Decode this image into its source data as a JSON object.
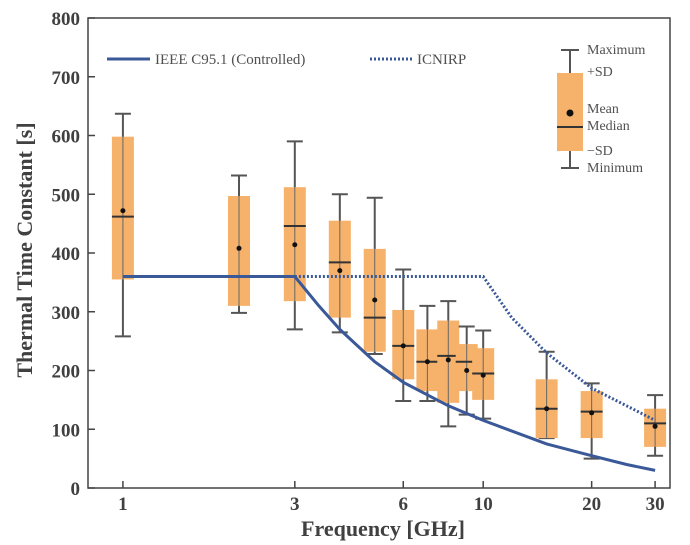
{
  "chart_data": {
    "type": "box",
    "xlabel": "Frequency [GHz]",
    "ylabel": "Thermal Time Constant [s]",
    "x_scale": "log",
    "xlim": [
      0.8,
      33
    ],
    "ylim": [
      0,
      800
    ],
    "x_ticks": [
      1,
      3,
      6,
      10,
      20,
      30
    ],
    "y_ticks": [
      0,
      100,
      200,
      300,
      400,
      500,
      600,
      700,
      800
    ],
    "grid": false,
    "legend_placement": "top-left",
    "colors": {
      "box_fill": "#f6b26b",
      "line": "#3b5998",
      "whisker": "#555555"
    },
    "series": [
      {
        "name": "IEEE C95.1 (Controlled)",
        "style": "solid",
        "x": [
          1,
          3,
          3.5,
          4,
          5,
          6,
          8,
          10,
          15,
          20,
          25,
          30
        ],
        "y": [
          360,
          360,
          310,
          270,
          215,
          180,
          140,
          115,
          75,
          55,
          40,
          30
        ]
      },
      {
        "name": "ICNIRP",
        "style": "dotted",
        "x": [
          1,
          10,
          12,
          15,
          20,
          25,
          30
        ],
        "y": [
          360,
          360,
          290,
          230,
          170,
          140,
          115
        ]
      }
    ],
    "boxes": [
      {
        "x": 1,
        "min": 258,
        "sd_low": 355,
        "median": 462,
        "mean": 472,
        "sd_high": 598,
        "max": 637
      },
      {
        "x": 2.1,
        "min": 298,
        "sd_low": 310,
        "median": 360,
        "mean": 408,
        "sd_high": 497,
        "max": 532
      },
      {
        "x": 3,
        "min": 270,
        "sd_low": 318,
        "median": 446,
        "mean": 414,
        "sd_high": 512,
        "max": 590
      },
      {
        "x": 4,
        "min": 265,
        "sd_low": 290,
        "median": 384,
        "mean": 370,
        "sd_high": 455,
        "max": 500
      },
      {
        "x": 5,
        "min": 228,
        "sd_low": 232,
        "median": 290,
        "mean": 320,
        "sd_high": 407,
        "max": 494
      },
      {
        "x": 6,
        "min": 148,
        "sd_low": 185,
        "median": 242,
        "mean": 242,
        "sd_high": 303,
        "max": 372
      },
      {
        "x": 7,
        "min": 148,
        "sd_low": 165,
        "median": 215,
        "mean": 215,
        "sd_high": 270,
        "max": 310
      },
      {
        "x": 8,
        "min": 105,
        "sd_low": 145,
        "median": 225,
        "mean": 218,
        "sd_high": 285,
        "max": 318
      },
      {
        "x": 9,
        "min": 125,
        "sd_low": 165,
        "median": 215,
        "mean": 200,
        "sd_high": 245,
        "max": 275
      },
      {
        "x": 10,
        "min": 118,
        "sd_low": 150,
        "median": 195,
        "mean": 192,
        "sd_high": 238,
        "max": 268
      },
      {
        "x": 15,
        "min": 85,
        "sd_low": 85,
        "median": 135,
        "mean": 135,
        "sd_high": 185,
        "max": 232
      },
      {
        "x": 20,
        "min": 50,
        "sd_low": 85,
        "median": 130,
        "mean": 128,
        "sd_high": 165,
        "max": 178
      },
      {
        "x": 30,
        "min": 55,
        "sd_low": 70,
        "median": 110,
        "mean": 105,
        "sd_high": 135,
        "max": 158
      }
    ],
    "key": {
      "maximum": "Maximum",
      "plus_sd": "+SD",
      "mean": "Mean",
      "median": "Median",
      "minus_sd": "−SD",
      "minimum": "Minimum"
    }
  }
}
